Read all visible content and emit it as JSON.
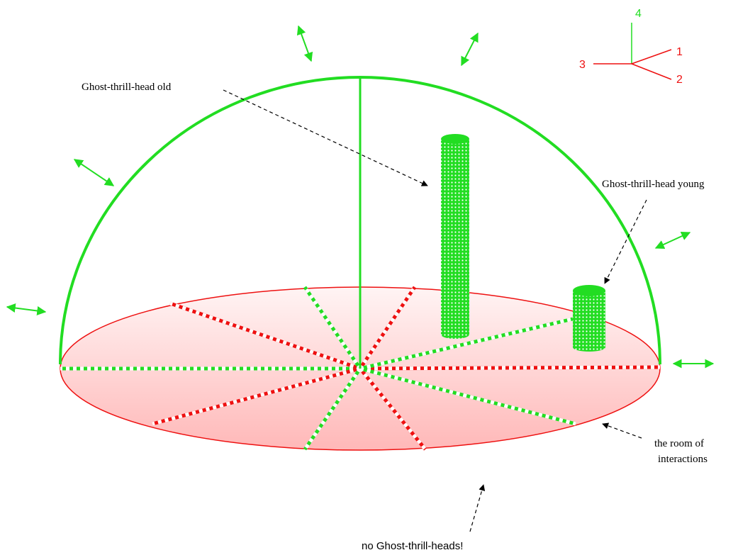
{
  "labels": {
    "ghost_old": "Ghost-thrill-head old",
    "ghost_young": "Ghost-thrill-head young",
    "room_line1": "the room of",
    "room_line2": "interactions",
    "no_heads": "no Ghost-thrill-heads!"
  },
  "axes": {
    "axis1": "1",
    "axis2": "2",
    "axis3": "3",
    "axis4": "4"
  },
  "colors": {
    "green": "#22dd22",
    "red": "#ee1111",
    "disc_fill_top": "#fff4f4",
    "disc_fill_bottom": "#ffb8b8"
  }
}
